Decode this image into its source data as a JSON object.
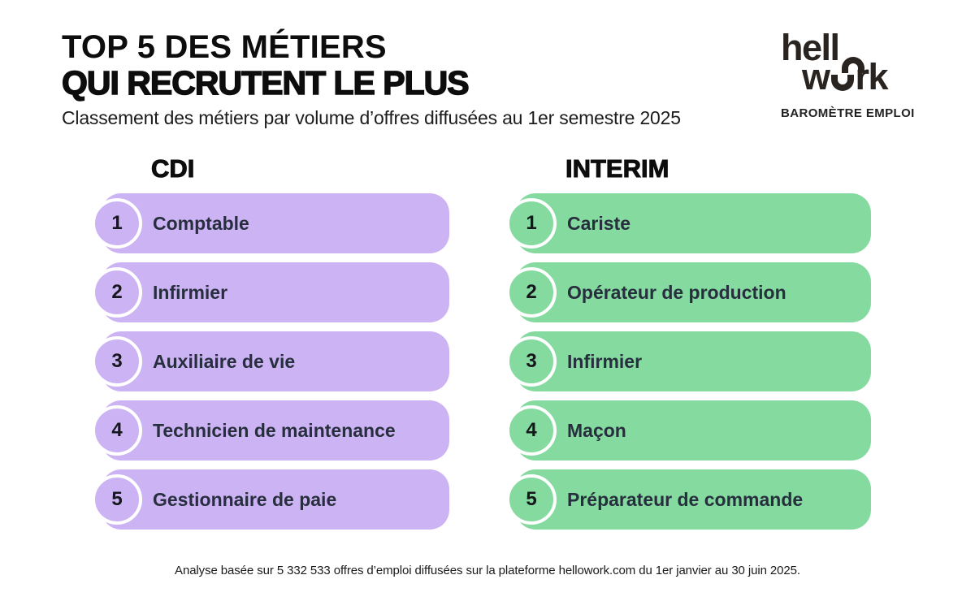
{
  "header": {
    "title_line1": "TOP 5 DES MÉTIERS",
    "title_line2": "QUI RECRUTENT LE PLUS",
    "subtitle": "Classement des métiers par volume d’offres diffusées au 1er semestre 2025"
  },
  "logo": {
    "name": "hellowork",
    "line1": "hell",
    "line2_start": "w",
    "line2_end": "rk",
    "tagline": "BAROMÈTRE EMPLOI",
    "color": "#2a2421"
  },
  "chart_data": {
    "type": "table",
    "title": "TOP 5 DES MÉTIERS QUI RECRUTENT LE PLUS",
    "subtitle": "Classement des métiers par volume d’offres diffusées au 1er semestre 2025",
    "columns": [
      {
        "id": "cdi",
        "label": "CDI",
        "color": "#ccb3f4",
        "items": [
          {
            "rank": "1",
            "label": "Comptable"
          },
          {
            "rank": "2",
            "label": "Infirmier"
          },
          {
            "rank": "3",
            "label": "Auxiliaire de vie"
          },
          {
            "rank": "4",
            "label": "Technicien de maintenance"
          },
          {
            "rank": "5",
            "label": "Gestionnaire de paie"
          }
        ]
      },
      {
        "id": "interim",
        "label": "INTERIM",
        "color": "#85da9f",
        "items": [
          {
            "rank": "1",
            "label": "Cariste"
          },
          {
            "rank": "2",
            "label": "Opérateur de production"
          },
          {
            "rank": "3",
            "label": "Infirmier"
          },
          {
            "rank": "4",
            "label": "Maçon"
          },
          {
            "rank": "5",
            "label": "Préparateur de commande"
          }
        ]
      }
    ]
  },
  "footer": {
    "note": "Analyse basée sur 5 332 533 offres d’emploi diffusées sur la plateforme hellowork.com du 1er janvier au 30 juin 2025."
  },
  "colors": {
    "background": "#ffffff",
    "cdi_bar": "#ccb3f4",
    "interim_bar": "#85da9f",
    "badge_ring": "#ffffff",
    "job_text": "#272e3d",
    "title_text": "#0d0d0d"
  }
}
